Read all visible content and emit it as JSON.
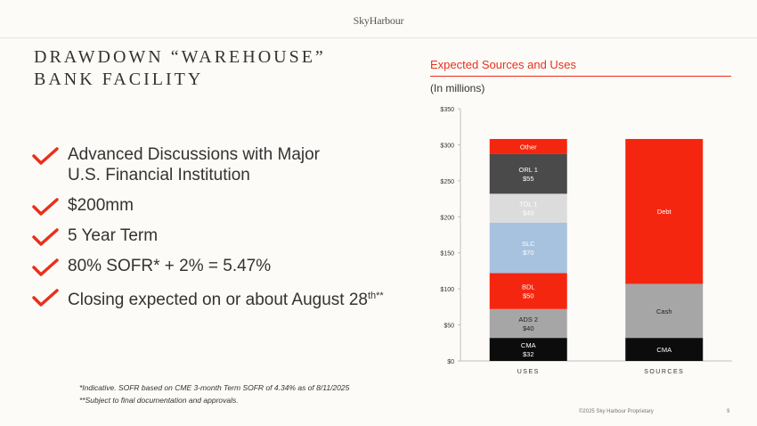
{
  "header": {
    "logo": "SkyHarbour"
  },
  "title": {
    "line1": "DRAWDOWN “WAREHOUSE”",
    "line2": "BANK FACILITY"
  },
  "bullets": [
    {
      "line1": "Advanced Discussions with Major",
      "line2": "U.S. Financial Institution"
    },
    {
      "text": "$200mm"
    },
    {
      "text": "5 Year Term"
    },
    {
      "text": "80% SOFR* + 2% = 5.47%"
    },
    {
      "text": "Closing expected on or about August 28",
      "sup": "th**"
    }
  ],
  "footnotes": [
    "*Indicative. SOFR based on CME 3-month Term SOFR of 4.34% as of 8/11/2025",
    "**Subject to final documentation and approvals."
  ],
  "chart_header": {
    "title": "Expected Sources and Uses",
    "subtitle": "(In millions)"
  },
  "footer": {
    "copyright": "©2025 Sky Harbour Proprietary",
    "page": "9"
  },
  "colors": {
    "accent": "#e8301c",
    "check": "#e8301c"
  },
  "chart_data": {
    "type": "stacked-bar",
    "title": "Expected Sources and Uses",
    "ylabel": "(In millions)",
    "ylim": [
      0,
      350
    ],
    "yticks": [
      0,
      50,
      100,
      150,
      200,
      250,
      300,
      350
    ],
    "ytick_labels": [
      "$0",
      "$50",
      "$100",
      "$150",
      "$200",
      "$250",
      "$300",
      "$350"
    ],
    "categories": [
      "USES",
      "SOURCES"
    ],
    "stacks": [
      {
        "category": "USES",
        "segments": [
          {
            "name": "CMA",
            "label": "CMA\n$32",
            "value": 32,
            "color": "#0c0c0c",
            "text_color": "#ffffff"
          },
          {
            "name": "ADS 2",
            "label": "ADS 2\n$40",
            "value": 40,
            "color": "#a6a6a6",
            "text_color": "#222222"
          },
          {
            "name": "BDL",
            "label": "BDL\n$50",
            "value": 50,
            "color": "#f5260f",
            "text_color": "#ffffff"
          },
          {
            "name": "SLC",
            "label": "SLC\n$70",
            "value": 70,
            "color": "#a7c2df",
            "text_color": "#ffffff"
          },
          {
            "name": "TOL 1",
            "label": "TOL 1\n$40",
            "value": 40,
            "color": "#dcdcdc",
            "text_color": "#ffffff"
          },
          {
            "name": "ORL 1",
            "label": "ORL 1\n$55",
            "value": 55,
            "color": "#4a4a4a",
            "text_color": "#ffffff"
          },
          {
            "name": "Other",
            "label": "Other",
            "value": 21,
            "color": "#f5260f",
            "text_color": "#ffffff"
          }
        ]
      },
      {
        "category": "SOURCES",
        "segments": [
          {
            "name": "CMA",
            "label": "CMA",
            "value": 32,
            "color": "#0c0c0c",
            "text_color": "#ffffff"
          },
          {
            "name": "Cash",
            "label": "Cash",
            "value": 75,
            "color": "#a6a6a6",
            "text_color": "#222222"
          },
          {
            "name": "Debt",
            "label": "Debt",
            "value": 201,
            "color": "#f5260f",
            "text_color": "#ffffff"
          }
        ]
      }
    ]
  }
}
